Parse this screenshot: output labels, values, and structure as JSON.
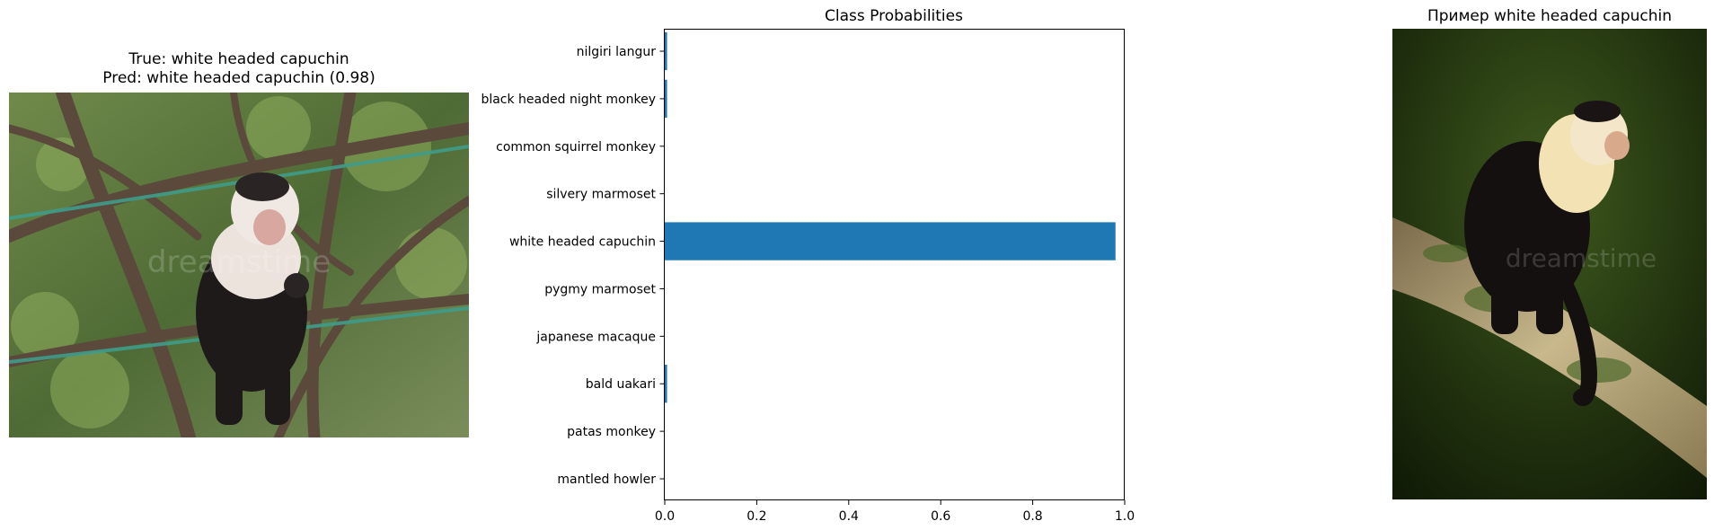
{
  "left_panel": {
    "title_line1": "True: white headed capuchin",
    "title_line2": "Pred: white headed capuchin (0.98)",
    "image_content": "photo of a white-headed capuchin monkey sitting among tree branches",
    "watermark": "dreamstime"
  },
  "right_panel": {
    "title": "Пример white headed capuchin",
    "image_content": "photo of a white-headed capuchin monkey on a mossy tree branch with dark green background",
    "watermark": "dreamstime"
  },
  "chart_data": {
    "type": "bar",
    "orientation": "horizontal",
    "title": "Class Probabilities",
    "xlabel": "",
    "ylabel": "",
    "categories": [
      "mantled howler",
      "patas monkey",
      "bald uakari",
      "japanese macaque",
      "pygmy marmoset",
      "white headed capuchin",
      "silvery marmoset",
      "common squirrel monkey",
      "black headed night monkey",
      "nilgiri langur"
    ],
    "values": [
      0.0,
      0.0,
      0.005,
      0.0,
      0.0,
      0.98,
      0.0,
      0.0,
      0.005,
      0.005
    ],
    "xlim": [
      0,
      1.0
    ],
    "xticks": [
      "0.0",
      "0.2",
      "0.4",
      "0.6",
      "0.8",
      "1.0"
    ],
    "grid": false,
    "bar_color": "#1f77b4"
  }
}
